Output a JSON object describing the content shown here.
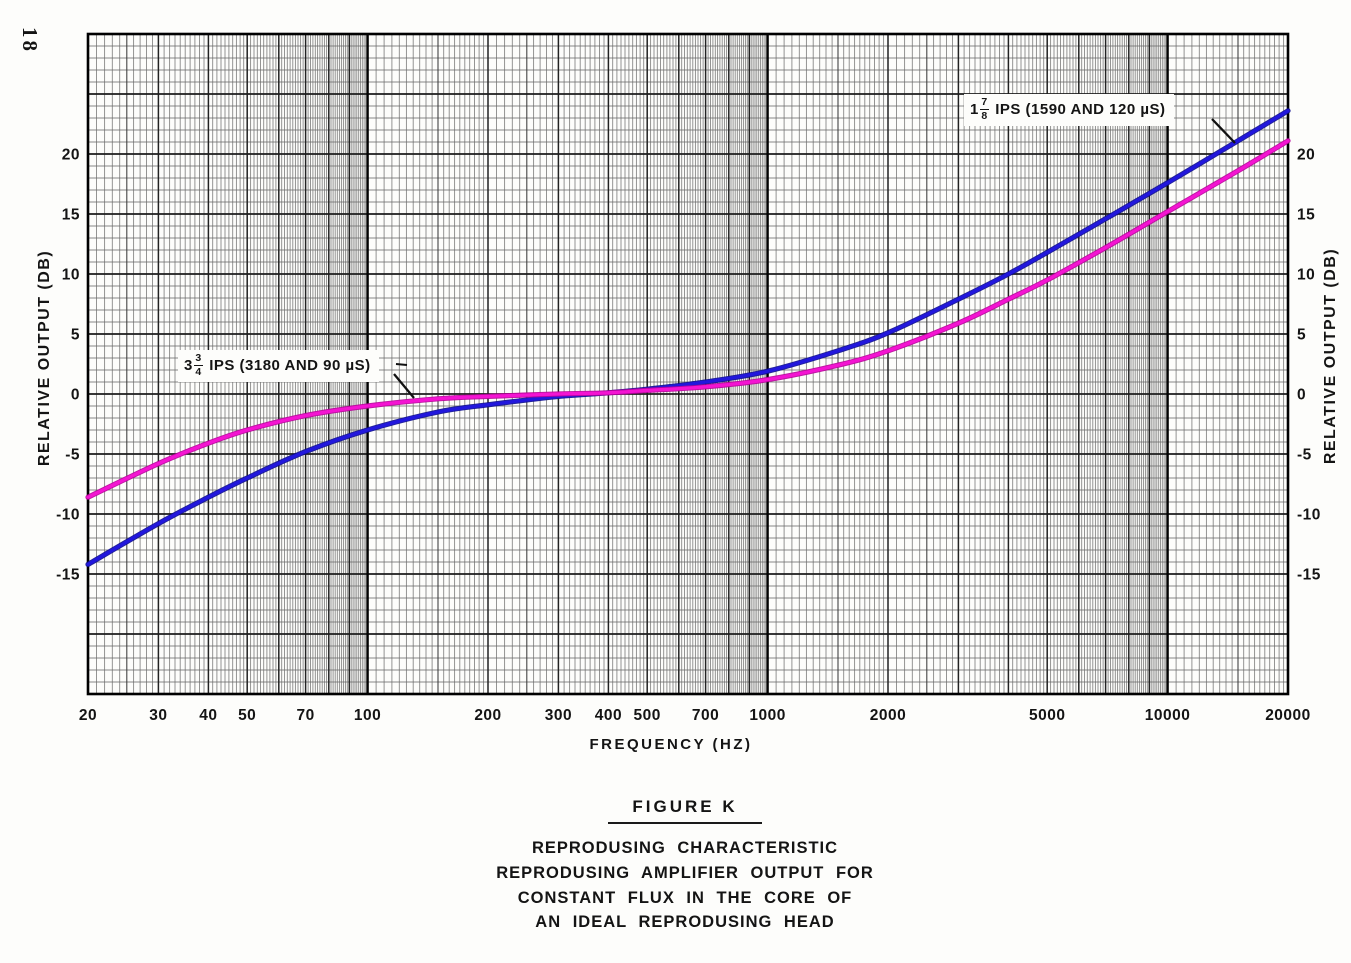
{
  "page_number": "18",
  "chart_data": {
    "type": "line",
    "title": "FIGURE K",
    "xlabel": "FREQUENCY (HZ)",
    "ylabel_left": "RELATIVE OUTPUT (DB)",
    "ylabel_right": "RELATIVE OUTPUT (DB)",
    "x_scale": "log",
    "xlim": [
      20,
      20000
    ],
    "ylim": [
      -25,
      30
    ],
    "y_minor_step_db": 1,
    "y_major_step_db": 5,
    "grid": "dense log-log engineering graph paper",
    "x_tick_labels": [
      20,
      30,
      40,
      50,
      70,
      100,
      200,
      300,
      400,
      500,
      700,
      1000,
      2000,
      5000,
      10000,
      20000
    ],
    "y_tick_labels": [
      20,
      15,
      10,
      5,
      0,
      -5,
      -10,
      -15
    ],
    "series": [
      {
        "name": "1 7/8 IPS (1590 AND 120 µS)",
        "color": "#2217dd",
        "outline_color": "#0b0b8f",
        "x": [
          20,
          30,
          40,
          50,
          70,
          100,
          150,
          200,
          300,
          400,
          500,
          700,
          1000,
          1500,
          2000,
          3000,
          4000,
          5000,
          7000,
          10000,
          15000,
          20000
        ],
        "y": [
          -14.2,
          -10.8,
          -8.6,
          -7.0,
          -4.8,
          -3.0,
          -1.5,
          -0.9,
          -0.2,
          0.1,
          0.4,
          1.0,
          1.9,
          3.6,
          5.1,
          7.9,
          10.0,
          11.8,
          14.6,
          17.6,
          21.1,
          23.6
        ]
      },
      {
        "name": "3 3/4 IPS (3180 AND 90 µS)",
        "color": "#f414d2",
        "outline_color": "#b8009a",
        "x": [
          20,
          30,
          40,
          50,
          70,
          100,
          150,
          200,
          300,
          400,
          500,
          700,
          1000,
          1500,
          2000,
          3000,
          4000,
          5000,
          7000,
          10000,
          15000,
          20000
        ],
        "y": [
          -8.6,
          -5.8,
          -4.1,
          -3.0,
          -1.8,
          -1.0,
          -0.4,
          -0.2,
          0.0,
          0.1,
          0.3,
          0.6,
          1.2,
          2.4,
          3.6,
          5.9,
          7.9,
          9.5,
          12.2,
          15.2,
          18.6,
          21.1
        ]
      }
    ]
  },
  "annotations": [
    {
      "whole": "1",
      "numerator": "7",
      "denominator": "8",
      "text": "IPS (1590 AND 120 µS)"
    },
    {
      "whole": "3",
      "numerator": "3",
      "denominator": "4",
      "text": "IPS (3180 AND 90 µS)"
    }
  ],
  "caption": {
    "figure_label": "FIGURE K",
    "lines": [
      "REPRODUSING  CHARACTERISTIC",
      "REPRODUSING AMPLIFIER OUTPUT FOR",
      "CONSTANT FLUX IN THE CORE OF",
      "AN IDEAL REPRODUSING HEAD"
    ]
  }
}
